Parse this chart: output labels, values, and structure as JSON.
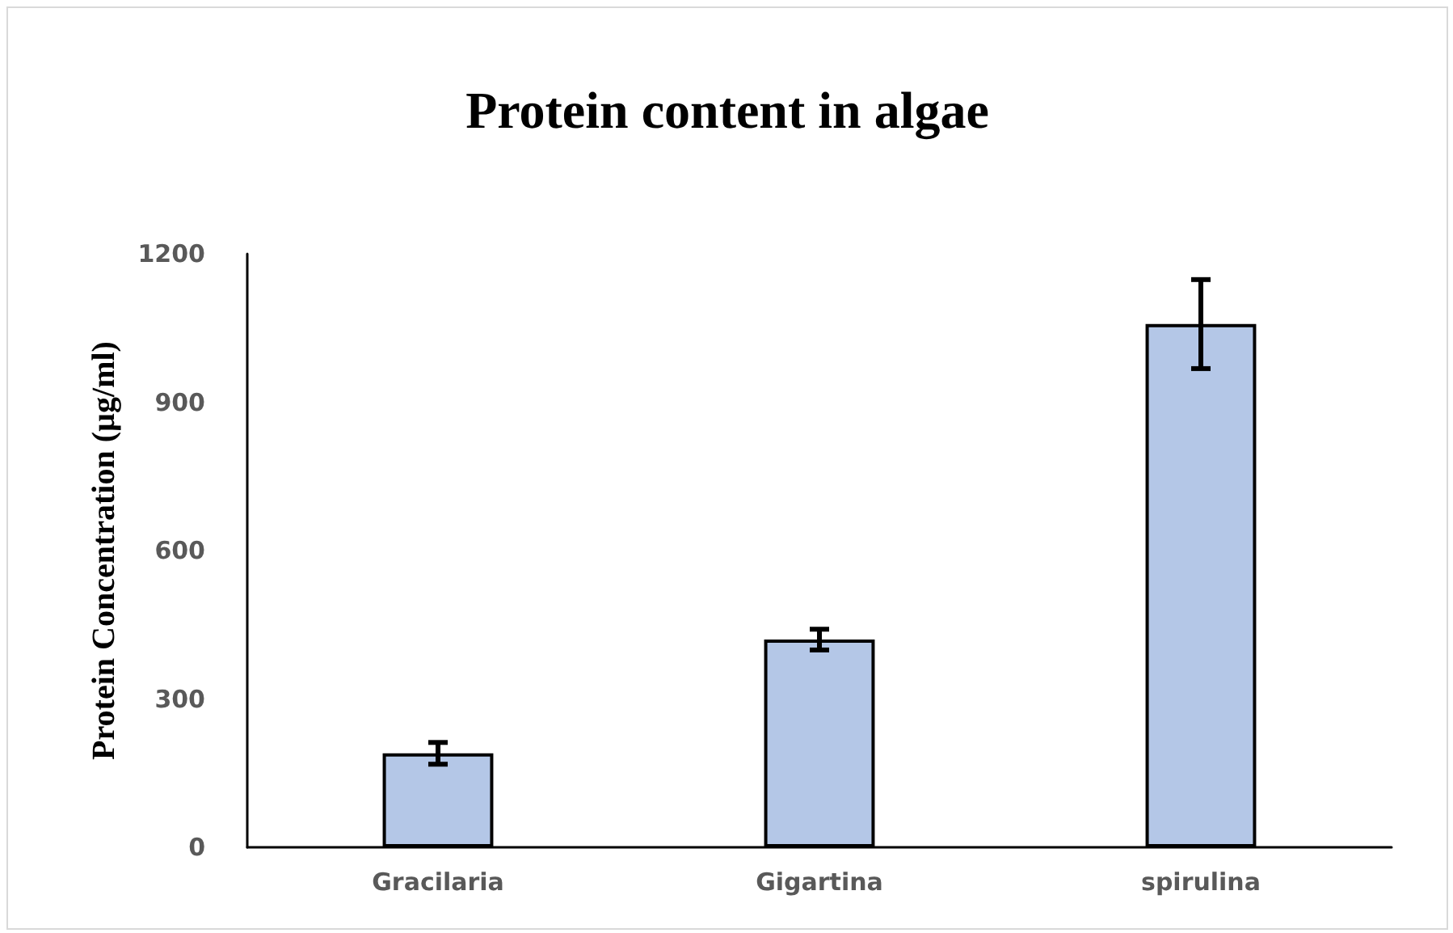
{
  "chart_data": {
    "type": "bar",
    "title": "Protein content in algae",
    "ylabel": "Protein Concentration (µg/ml)",
    "categories": [
      "Gracilaria",
      "Gigartina",
      "spirulina"
    ],
    "values": [
      190,
      420,
      1058
    ],
    "errors": [
      22,
      21,
      90
    ],
    "color": "#b4c7e7",
    "ylim": [
      0,
      1200
    ],
    "yticks": [
      0,
      300,
      600,
      900,
      1200
    ],
    "grid": false
  }
}
